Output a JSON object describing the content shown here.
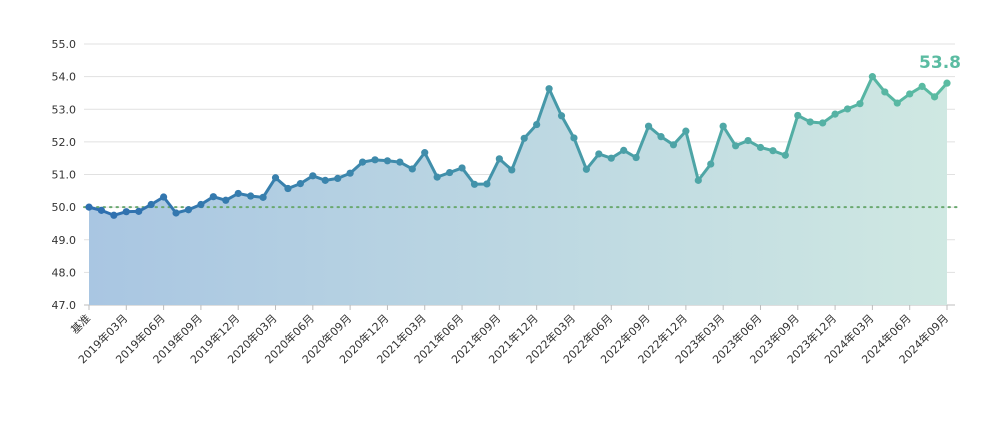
{
  "chart_data": {
    "type": "area",
    "title": "",
    "xlabel": "",
    "ylabel": "",
    "ylim": [
      47.0,
      55.0
    ],
    "yticks": [
      "47.0",
      "48.0",
      "49.0",
      "50.0",
      "51.0",
      "52.0",
      "53.0",
      "54.0",
      "55.0"
    ],
    "reference_line": 50.0,
    "grid": true,
    "x_tick_labels": [
      "基准",
      "2019年03月",
      "2019年06月",
      "2019年09月",
      "2019年12月",
      "2020年03月",
      "2020年06月",
      "2020年09月",
      "2020年12月",
      "2021年03月",
      "2021年06月",
      "2021年09月",
      "2021年12月",
      "2022年03月",
      "2022年06月",
      "2022年09月",
      "2022年12月",
      "2023年03月",
      "2023年06月",
      "2023年09月",
      "2023年12月",
      "2024年03月",
      "2024年06月",
      "2024年09月"
    ],
    "last_value_label": "53.8",
    "colors": {
      "start": "#2e6fb0",
      "end": "#5bbca2",
      "reference": "#6aa86f"
    },
    "series": [
      {
        "values": [
          50.0,
          49.9,
          49.75,
          49.86,
          49.87,
          50.08,
          50.31,
          49.82,
          49.92,
          50.08,
          50.32,
          50.21,
          50.42,
          50.34,
          50.3,
          50.9,
          50.57,
          50.72,
          50.96,
          50.82,
          50.88,
          51.04,
          51.38,
          51.45,
          51.42,
          51.38,
          51.17,
          51.67,
          50.92,
          51.06,
          51.2,
          50.7,
          50.71,
          51.48,
          51.14,
          52.11,
          52.53,
          53.63,
          52.8,
          52.12,
          51.16,
          51.63,
          51.5,
          51.74,
          51.52,
          52.48,
          52.16,
          51.91,
          52.33,
          50.82,
          51.32,
          52.48,
          51.88,
          52.04,
          51.83,
          51.73,
          51.59,
          52.81,
          52.61,
          52.58,
          52.85,
          53.01,
          53.17,
          54.0,
          53.53,
          53.19,
          53.47,
          53.7,
          53.38,
          53.8
        ]
      }
    ]
  }
}
